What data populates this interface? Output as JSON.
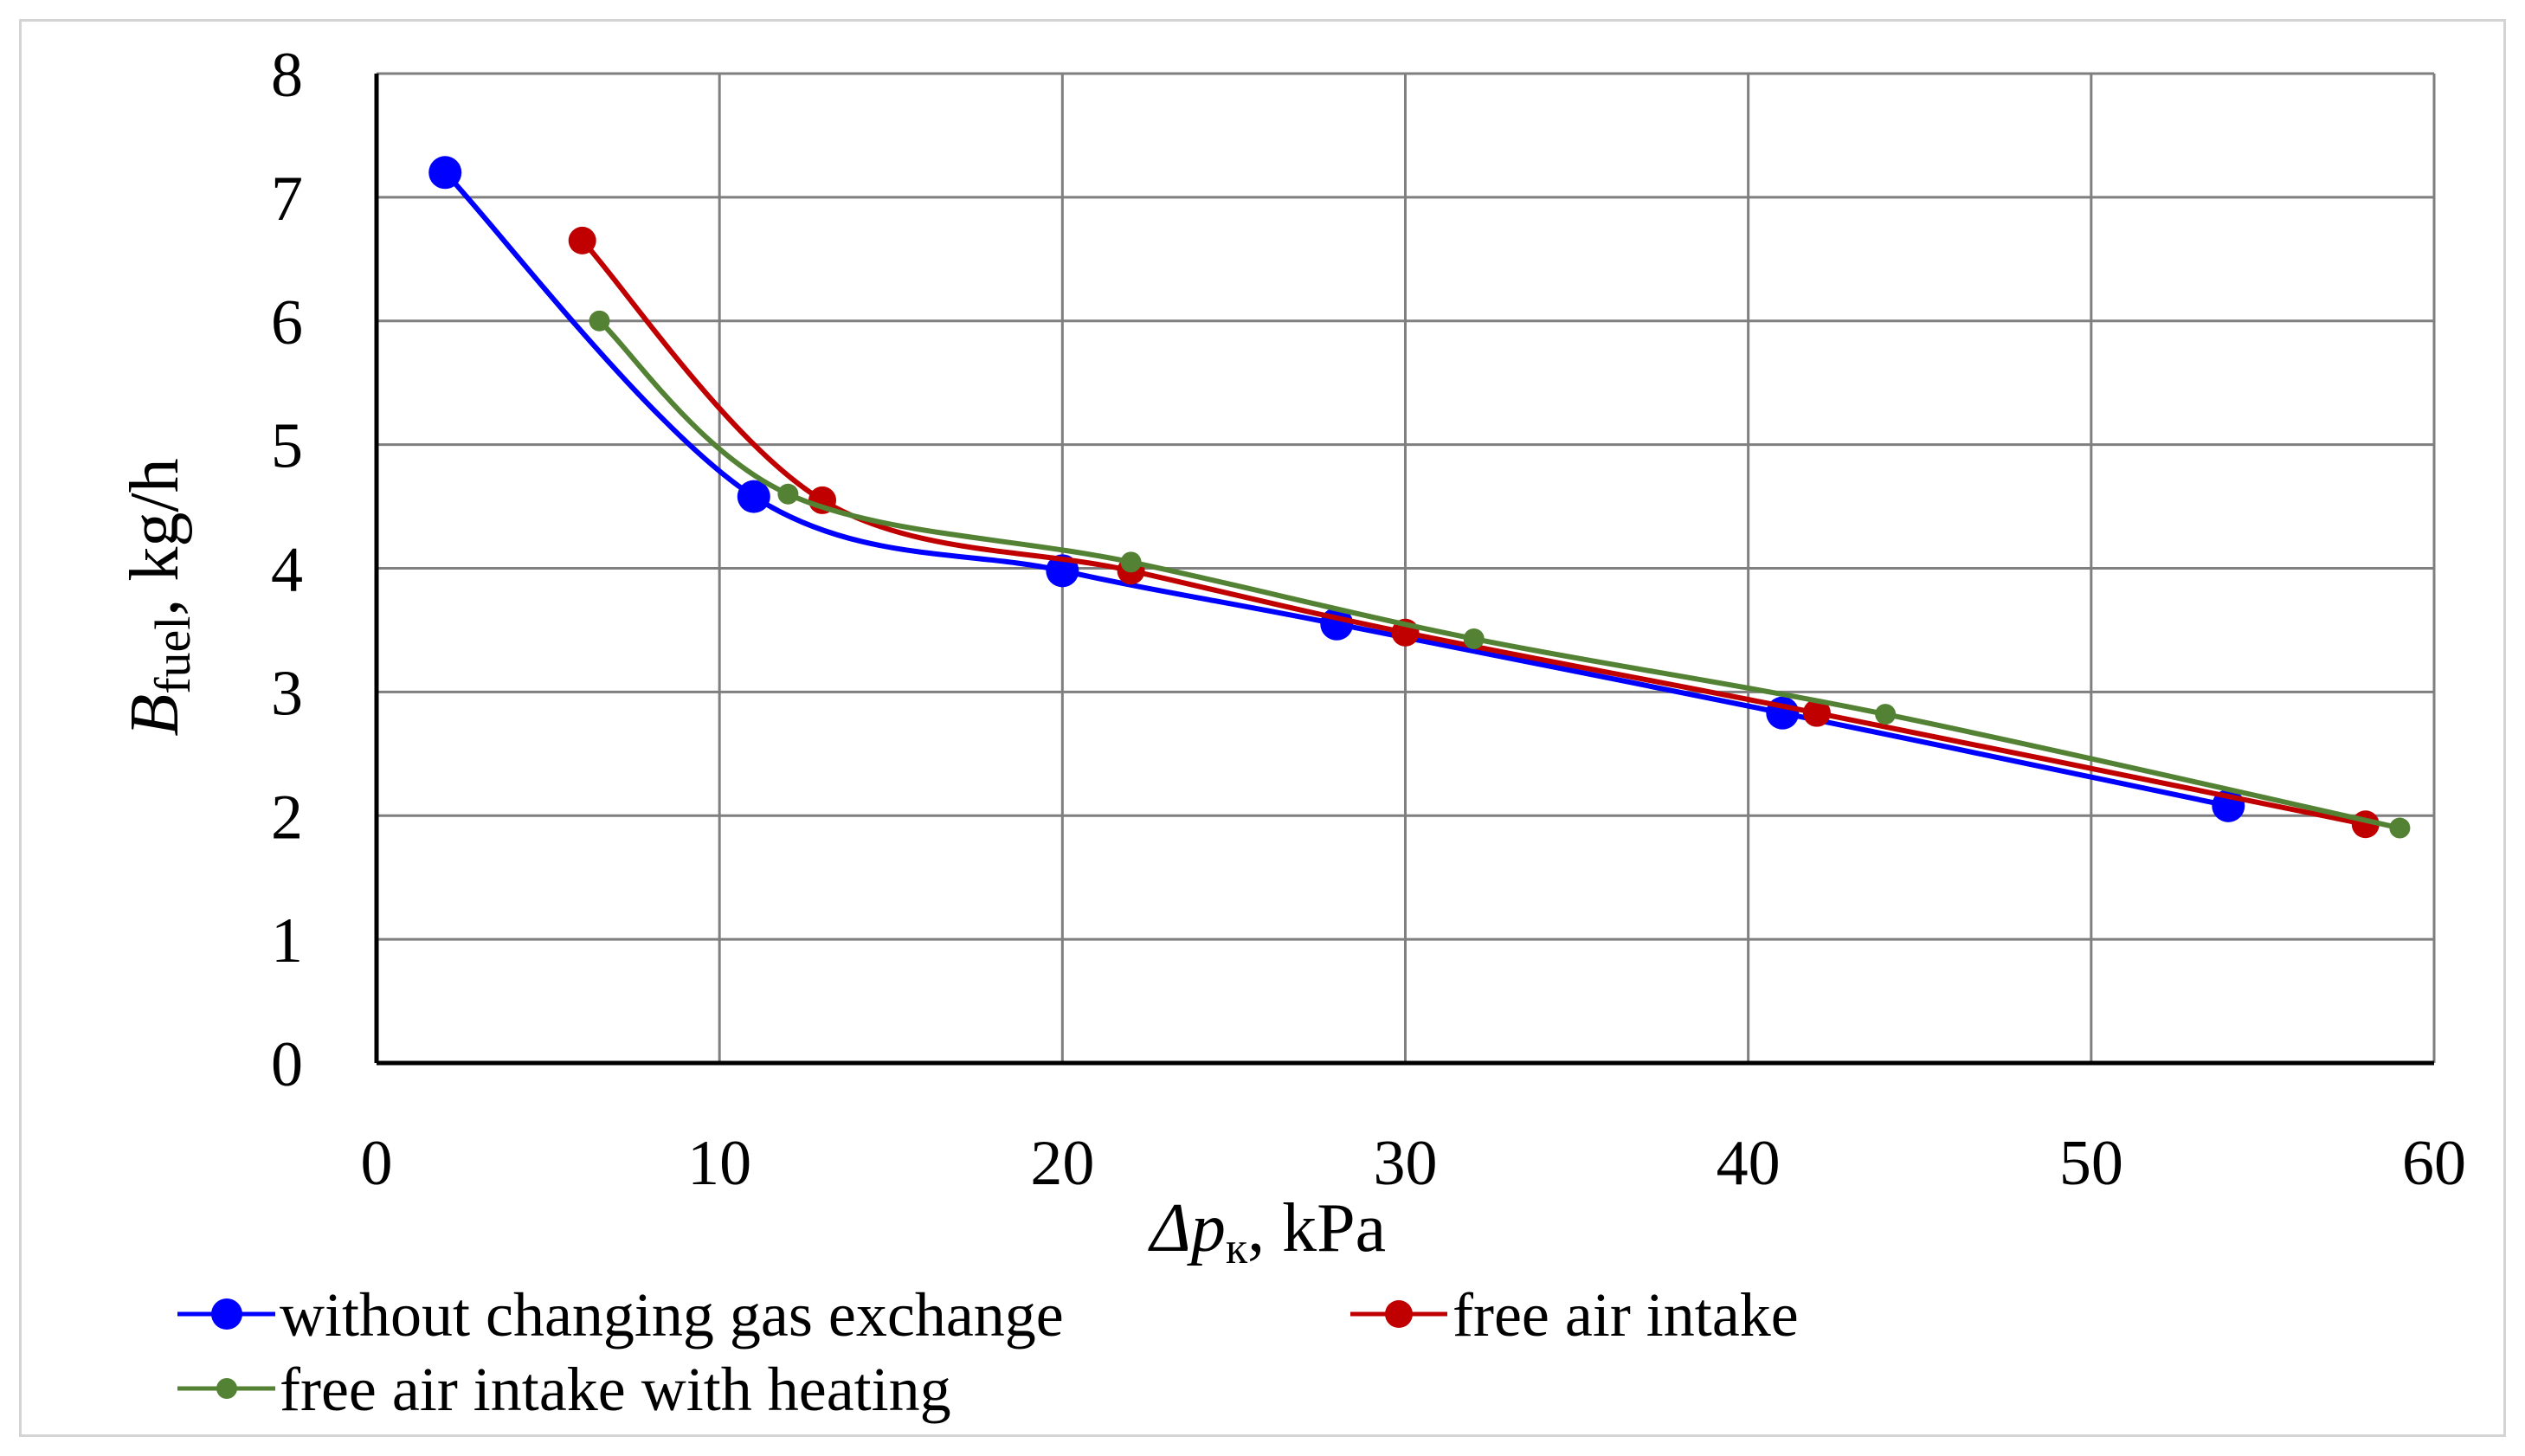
{
  "chart_data": {
    "type": "line",
    "title": "",
    "xlabel": {
      "main": "Δp",
      "sub": "к",
      "suffix": ", kPa"
    },
    "ylabel": {
      "main": "B",
      "sub": "fuel",
      "suffix": ", kg/h"
    },
    "xlim": [
      0,
      60
    ],
    "ylim": [
      0,
      8
    ],
    "xticks": [
      0,
      10,
      20,
      30,
      40,
      50,
      60
    ],
    "yticks": [
      0,
      1,
      2,
      3,
      4,
      5,
      6,
      7,
      8
    ],
    "grid": true,
    "legend_position": "bottom",
    "series": [
      {
        "name": "without changing gas exchange",
        "color": "#0000ff",
        "marker": "large-circle",
        "x": [
          2,
          11,
          20,
          28,
          41,
          54
        ],
        "y": [
          7.2,
          4.58,
          3.98,
          3.55,
          2.83,
          2.08
        ]
      },
      {
        "name": "free air intake",
        "color": "#c00000",
        "marker": "medium-circle",
        "x": [
          6,
          13,
          22,
          30,
          42,
          58
        ],
        "y": [
          6.65,
          4.55,
          3.98,
          3.48,
          2.83,
          1.93
        ]
      },
      {
        "name": "free air intake with heating",
        "color": "#548235",
        "marker": "small-circle",
        "x": [
          6.5,
          12,
          22,
          32,
          44,
          59
        ],
        "y": [
          6.0,
          4.6,
          4.05,
          3.43,
          2.82,
          1.9
        ]
      }
    ]
  }
}
